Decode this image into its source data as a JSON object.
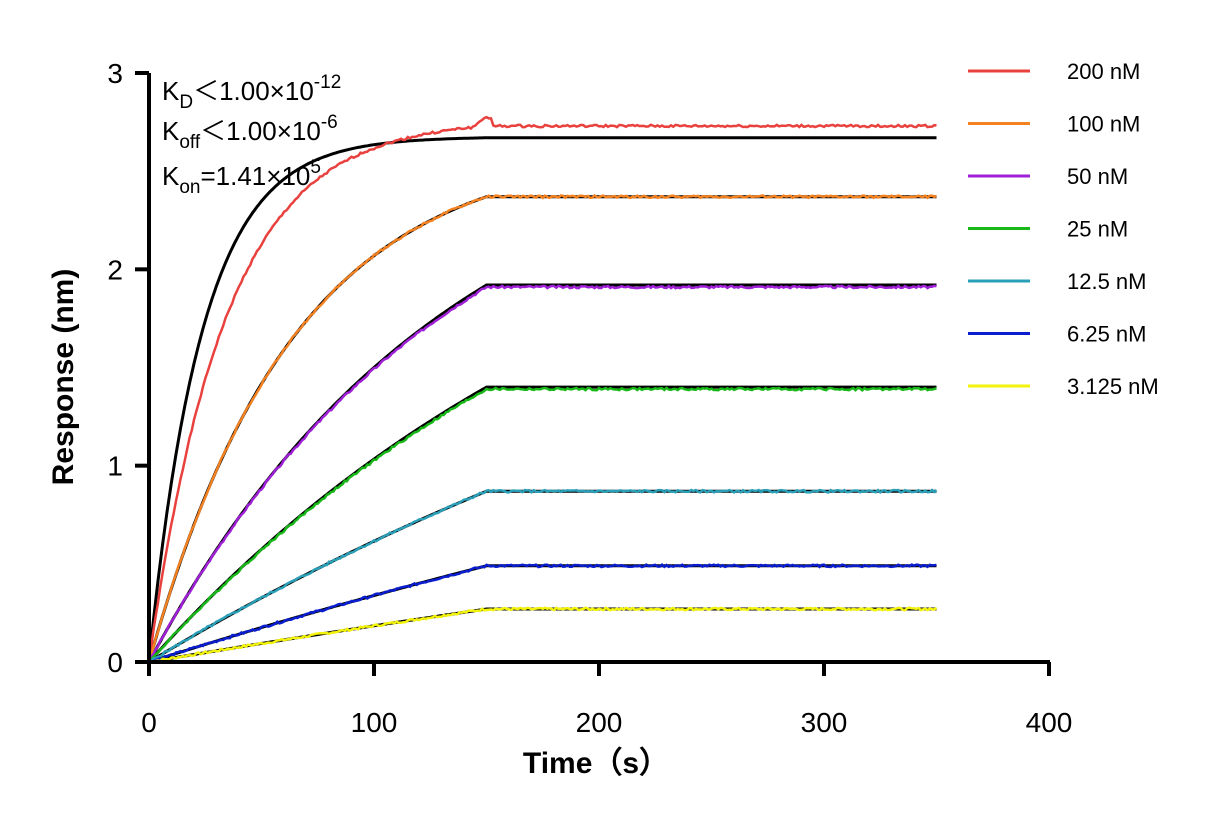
{
  "chart_data": {
    "type": "line",
    "xlabel": "Time（s）",
    "ylabel": "Response (nm)",
    "xlim": [
      0,
      400
    ],
    "ylim": [
      0,
      3
    ],
    "xticks": [
      "0",
      "100",
      "200",
      "300",
      "400"
    ],
    "yticks": [
      "0",
      "1",
      "2",
      "3"
    ],
    "grid": false,
    "legend_position": "right",
    "association_end": 150,
    "time_end": 350,
    "annotations": {
      "kd": {
        "main": "K",
        "sub": "D",
        "rel": "＜1.00×10",
        "exp": "-12"
      },
      "koff": {
        "main": "K",
        "sub": "off",
        "rel": "＜1.00×10",
        "exp": "-6"
      },
      "kon": {
        "main": "K",
        "sub": "on",
        "rel": "=1.41×10",
        "exp": "5"
      }
    },
    "fit_color": "#000000",
    "series": [
      {
        "name": "200 nM",
        "color": "#e8413e",
        "plateau_measured": 2.73,
        "plateau_fit": 2.67,
        "rate": 0.042
      },
      {
        "name": "100 nM",
        "color": "#f58220",
        "plateau_measured": 2.37,
        "plateau_fit": 2.37,
        "rate": 0.0155
      },
      {
        "name": "50 nM",
        "color": "#a020d8",
        "plateau_measured": 1.91,
        "plateau_fit": 1.92,
        "rate": 0.0075
      },
      {
        "name": "25 nM",
        "color": "#18b818",
        "plateau_measured": 1.39,
        "plateau_fit": 1.4,
        "rate": 0.0045
      },
      {
        "name": "12.5 nM",
        "color": "#2a9fb8",
        "plateau_measured": 0.87,
        "plateau_fit": 0.87,
        "rate": 0.0025
      },
      {
        "name": "6.25 nM",
        "color": "#0a1ed0",
        "plateau_measured": 0.49,
        "plateau_fit": 0.49,
        "rate": 0.0015
      },
      {
        "name": "3.125 nM",
        "color": "#f2f20a",
        "plateau_measured": 0.27,
        "plateau_fit": 0.27,
        "rate": 0.001
      }
    ]
  }
}
